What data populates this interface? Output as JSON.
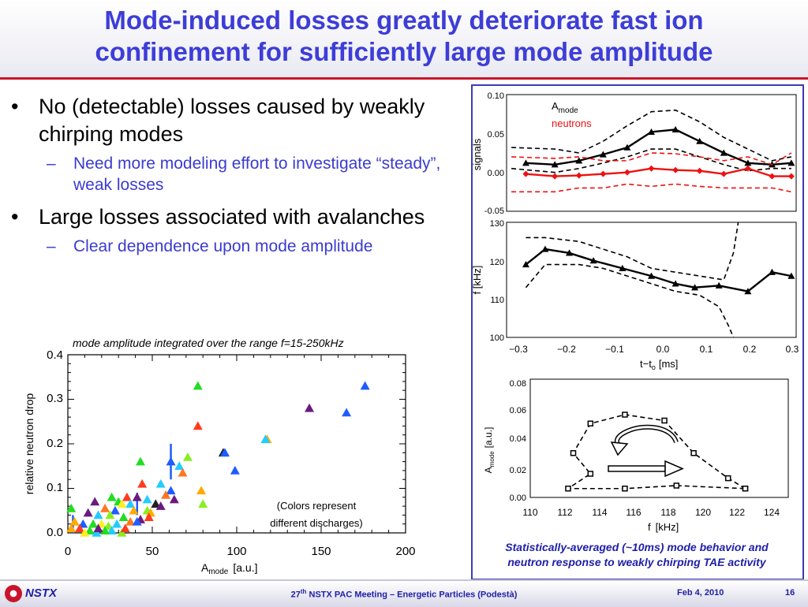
{
  "header": {
    "title_line1": "Mode-induced losses greatly deteriorate fast ion",
    "title_line2": "confinement for sufficiently large mode amplitude"
  },
  "bullets": [
    {
      "text": "No (detectable) losses caused by weakly chirping modes",
      "sub": "Need more modeling effort to investigate “steady”, weak losses"
    },
    {
      "text": "Large losses associated with avalanches",
      "sub": "Clear dependence upon mode amplitude"
    }
  ],
  "bullet_glyph": "•",
  "dash_glyph": "–",
  "colors": {
    "title": "#3d3dd8",
    "accent_red": "#c9152b",
    "footer_text": "#1e1ea8"
  },
  "chart_data": [
    {
      "type": "scatter",
      "title": "mode amplitude integrated over the range f=15-250kHz",
      "xlabel": "A",
      "xlabel_sub": "mode",
      "xlabel_unit": "[a.u.]",
      "ylabel": "relative neutron drop",
      "xlim": [
        0,
        200
      ],
      "ylim": [
        0,
        0.4
      ],
      "xticks": [
        "0",
        "50",
        "100",
        "150",
        "200"
      ],
      "yticks": [
        "0.0",
        "0.1",
        "0.2",
        "0.3",
        "0.4"
      ],
      "annotation_line1": "(Colors represent",
      "annotation_line2": "different discharges)",
      "points": [
        {
          "x": 77,
          "y": 0.33,
          "c": "#22dd22"
        },
        {
          "x": 176,
          "y": 0.33,
          "c": "#1e5cff"
        },
        {
          "x": 143,
          "y": 0.28,
          "c": "#6a1a80"
        },
        {
          "x": 165,
          "y": 0.27,
          "c": "#1e5cff"
        },
        {
          "x": 77,
          "y": 0.24,
          "c": "#ff3b1e"
        },
        {
          "x": 118,
          "y": 0.21,
          "c": "#ffaa00"
        },
        {
          "x": 117,
          "y": 0.21,
          "c": "#22ccff"
        },
        {
          "x": 92,
          "y": 0.18,
          "c": "#222222"
        },
        {
          "x": 93,
          "y": 0.18,
          "c": "#1e5cff"
        },
        {
          "x": 71,
          "y": 0.17,
          "c": "#88ee22"
        },
        {
          "x": 61,
          "y": 0.16,
          "c": "#1e5cff"
        },
        {
          "x": 43,
          "y": 0.16,
          "c": "#22dd22"
        },
        {
          "x": 66,
          "y": 0.15,
          "c": "#22ccff"
        },
        {
          "x": 99,
          "y": 0.14,
          "c": "#1e5cff"
        },
        {
          "x": 68,
          "y": 0.135,
          "c": "#ff7722"
        },
        {
          "x": 55,
          "y": 0.11,
          "c": "#22ccff"
        },
        {
          "x": 44,
          "y": 0.11,
          "c": "#ff3b1e"
        },
        {
          "x": 79,
          "y": 0.095,
          "c": "#ffaa00"
        },
        {
          "x": 61,
          "y": 0.095,
          "c": "#1e5cff"
        },
        {
          "x": 58,
          "y": 0.085,
          "c": "#ff7722"
        },
        {
          "x": 63,
          "y": 0.075,
          "c": "#6a1a80"
        },
        {
          "x": 80,
          "y": 0.065,
          "c": "#88ee22"
        },
        {
          "x": 26,
          "y": 0.08,
          "c": "#22dd22"
        },
        {
          "x": 35,
          "y": 0.08,
          "c": "#ff3b1e"
        },
        {
          "x": 41,
          "y": 0.08,
          "c": "#6a1a80"
        },
        {
          "x": 47,
          "y": 0.075,
          "c": "#22ccff"
        },
        {
          "x": 16,
          "y": 0.07,
          "c": "#6a1a80"
        },
        {
          "x": 30,
          "y": 0.07,
          "c": "#22dd22"
        },
        {
          "x": 32,
          "y": 0.065,
          "c": "#ffee22"
        },
        {
          "x": 37,
          "y": 0.065,
          "c": "#22ccff"
        },
        {
          "x": 52,
          "y": 0.065,
          "c": "#222222"
        },
        {
          "x": 55,
          "y": 0.06,
          "c": "#6a1a80"
        },
        {
          "x": 2,
          "y": 0.055,
          "c": "#22dd22"
        },
        {
          "x": 22,
          "y": 0.055,
          "c": "#ff7722"
        },
        {
          "x": 28,
          "y": 0.05,
          "c": "#1e5cff"
        },
        {
          "x": 39,
          "y": 0.05,
          "c": "#ffaa00"
        },
        {
          "x": 47,
          "y": 0.05,
          "c": "#88ee22"
        },
        {
          "x": 49,
          "y": 0.045,
          "c": "#ffaa00"
        },
        {
          "x": 12,
          "y": 0.045,
          "c": "#6a1a80"
        },
        {
          "x": 18,
          "y": 0.04,
          "c": "#22ccff"
        },
        {
          "x": 25,
          "y": 0.04,
          "c": "#88ee22"
        },
        {
          "x": 33,
          "y": 0.035,
          "c": "#22dd22"
        },
        {
          "x": 43,
          "y": 0.03,
          "c": "#6a1a80"
        },
        {
          "x": 48,
          "y": 0.035,
          "c": "#ff3b1e"
        },
        {
          "x": 4,
          "y": 0.025,
          "c": "#ffaa00"
        },
        {
          "x": 9,
          "y": 0.02,
          "c": "#1e5cff"
        },
        {
          "x": 15,
          "y": 0.02,
          "c": "#22dd22"
        },
        {
          "x": 20,
          "y": 0.02,
          "c": "#ffee22"
        },
        {
          "x": 24,
          "y": 0.015,
          "c": "#88ee22"
        },
        {
          "x": 29,
          "y": 0.02,
          "c": "#22ccff"
        },
        {
          "x": 37,
          "y": 0.025,
          "c": "#ff7722"
        },
        {
          "x": 41,
          "y": 0.025,
          "c": "#1e5cff"
        },
        {
          "x": 2,
          "y": 0.01,
          "c": "#ffaa00"
        },
        {
          "x": 7,
          "y": 0.01,
          "c": "#ff3b1e"
        },
        {
          "x": 13,
          "y": 0.005,
          "c": "#22dd22"
        },
        {
          "x": 17,
          "y": 0.0,
          "c": "#22ccff"
        },
        {
          "x": 26,
          "y": 0.005,
          "c": "#22ccff"
        },
        {
          "x": 32,
          "y": 0.0,
          "c": "#88ee22"
        },
        {
          "x": 22,
          "y": 0.005,
          "c": "#22dd22"
        },
        {
          "x": 34,
          "y": 0.01,
          "c": "#ff3b1e"
        },
        {
          "x": 10,
          "y": 0.0,
          "c": "#ffee22"
        },
        {
          "x": 18,
          "y": 0.01,
          "c": "#6a1a80"
        }
      ],
      "errorbars": [
        {
          "x": 61,
          "y_low": 0.12,
          "y_high": 0.2,
          "c": "#1e5cff"
        },
        {
          "x": 41,
          "y_low": 0.04,
          "y_high": 0.09,
          "c": "#1e5cff"
        },
        {
          "x": 3,
          "y_low": 0.0,
          "y_high": 0.04,
          "c": "#1e5cff"
        }
      ]
    },
    {
      "type": "line",
      "ylabel": "signals",
      "xlim": [
        -0.3,
        0.3
      ],
      "ylim": [
        -0.05,
        0.1
      ],
      "yticks": [
        "0.10",
        "0.05",
        "0.00",
        "-0.05"
      ],
      "legend": [
        "A",
        "mode",
        "neutrons"
      ],
      "series": [
        {
          "name": "A",
          "color": "#000000",
          "marker": "triangle",
          "x": [
            -0.26,
            -0.2,
            -0.15,
            -0.1,
            -0.05,
            0.0,
            0.05,
            0.1,
            0.15,
            0.2,
            0.25,
            0.29
          ],
          "y": [
            0.012,
            0.01,
            0.015,
            0.023,
            0.032,
            0.052,
            0.055,
            0.04,
            0.025,
            0.012,
            0.01,
            0.012
          ]
        },
        {
          "name": "A upper",
          "color": "#000000",
          "dash": true,
          "x": [
            -0.29,
            -0.2,
            -0.15,
            -0.1,
            -0.05,
            0.0,
            0.05,
            0.1,
            0.15,
            0.2,
            0.25,
            0.29
          ],
          "y": [
            0.032,
            0.03,
            0.025,
            0.04,
            0.06,
            0.078,
            0.08,
            0.065,
            0.045,
            0.03,
            0.015,
            0.02
          ]
        },
        {
          "name": "A lower",
          "color": "#000000",
          "dash": true,
          "x": [
            -0.29,
            -0.2,
            -0.15,
            -0.1,
            -0.05,
            0.0,
            0.05,
            0.1,
            0.15,
            0.2,
            0.25,
            0.29
          ],
          "y": [
            0.005,
            0.0,
            0.005,
            0.012,
            0.02,
            0.03,
            0.03,
            0.02,
            0.01,
            0.002,
            0.005,
            0.005
          ]
        },
        {
          "name": "neutrons",
          "color": "#ee1111",
          "marker": "diamond",
          "x": [
            -0.26,
            -0.2,
            -0.15,
            -0.1,
            -0.05,
            0.0,
            0.05,
            0.1,
            0.15,
            0.2,
            0.25,
            0.29
          ],
          "y": [
            -0.002,
            -0.005,
            -0.004,
            -0.002,
            0.0,
            0.005,
            0.003,
            0.002,
            -0.002,
            0.005,
            -0.005,
            -0.005
          ]
        },
        {
          "name": "neutrons upper",
          "color": "#ee1111",
          "dash": true,
          "x": [
            -0.29,
            -0.2,
            -0.15,
            -0.1,
            -0.05,
            0.0,
            0.05,
            0.1,
            0.15,
            0.2,
            0.25,
            0.29
          ],
          "y": [
            0.02,
            0.018,
            0.02,
            0.015,
            0.015,
            0.025,
            0.024,
            0.02,
            0.015,
            0.02,
            0.01,
            0.025
          ]
        },
        {
          "name": "neutrons lower",
          "color": "#ee1111",
          "dash": true,
          "x": [
            -0.29,
            -0.2,
            -0.15,
            -0.1,
            -0.05,
            0.0,
            0.05,
            0.1,
            0.15,
            0.2,
            0.25,
            0.29
          ],
          "y": [
            -0.025,
            -0.025,
            -0.02,
            -0.02,
            -0.015,
            -0.018,
            -0.015,
            -0.018,
            -0.02,
            -0.02,
            -0.02,
            -0.025
          ]
        }
      ]
    },
    {
      "type": "line",
      "xlabel": "t−t",
      "xlabel_sub": "o",
      "xlabel_unit": "[ms]",
      "ylabel": "f [kHz]",
      "xlim": [
        -0.3,
        0.3
      ],
      "ylim": [
        100,
        130
      ],
      "xticks": [
        "−0.3",
        "−0.2",
        "−0.1",
        "0.0",
        "0.1",
        "0.2",
        "0.3"
      ],
      "yticks": [
        "130",
        "120",
        "110",
        "100"
      ],
      "series": [
        {
          "name": "f",
          "color": "#000000",
          "marker": "triangle",
          "x": [
            -0.26,
            -0.22,
            -0.17,
            -0.12,
            -0.06,
            0.0,
            0.05,
            0.09,
            0.14,
            0.2,
            0.25,
            0.29
          ],
          "y": [
            119,
            123,
            122,
            120,
            118,
            116,
            114,
            113,
            113.5,
            112,
            117,
            116
          ]
        },
        {
          "name": "f upper",
          "color": "#000000",
          "dash": true,
          "x": [
            -0.26,
            -0.22,
            -0.15,
            -0.1,
            -0.05,
            0.0,
            0.05,
            0.1,
            0.15,
            0.17,
            0.18
          ],
          "y": [
            126,
            126,
            125,
            123,
            121,
            118,
            117,
            116,
            115,
            122,
            130
          ]
        },
        {
          "name": "f lower",
          "color": "#000000",
          "dash": true,
          "x": [
            -0.26,
            -0.22,
            -0.15,
            -0.1,
            -0.05,
            0.0,
            0.05,
            0.1,
            0.14,
            0.16,
            0.17
          ],
          "y": [
            113,
            119,
            119,
            118,
            116,
            114,
            112,
            111,
            108,
            103,
            100
          ]
        }
      ]
    },
    {
      "type": "line",
      "xlabel": "f",
      "xlabel_unit": "[kHz]",
      "ylabel": "A",
      "ylabel_sub": "mode",
      "ylabel_unit": "[a.u.]",
      "xlim": [
        110,
        125
      ],
      "ylim": [
        0,
        0.08
      ],
      "xticks": [
        "110",
        "112",
        "114",
        "116",
        "118",
        "120",
        "122",
        "124"
      ],
      "yticks": [
        "0.08",
        "0.06",
        "0.04",
        "0.02",
        "0.00"
      ],
      "series": [
        {
          "name": "loop",
          "color": "#000000",
          "dash": true,
          "marker": "square",
          "x": [
            122.5,
            121.5,
            119.5,
            117.8,
            115.5,
            113.5,
            112.5,
            113.5,
            112.2,
            115.5,
            118.5,
            122.5
          ],
          "y": [
            0.006,
            0.013,
            0.03,
            0.052,
            0.056,
            0.05,
            0.03,
            0.016,
            0.006,
            0.006,
            0.008,
            0.006
          ]
        }
      ]
    }
  ],
  "rpanel": {
    "caption_line1": "Statistically-averaged (~10ms) mode behavior and",
    "caption_line2": "neutron response to weakly chirping TAE activity"
  },
  "footer": {
    "logo_text": "NSTX",
    "meeting_prefix": "27",
    "meeting_sup": "th",
    "meeting_rest": " NSTX PAC Meeting – Energetic Particles (Podestà)",
    "date": "Feb 4, 2010",
    "page": "16"
  }
}
